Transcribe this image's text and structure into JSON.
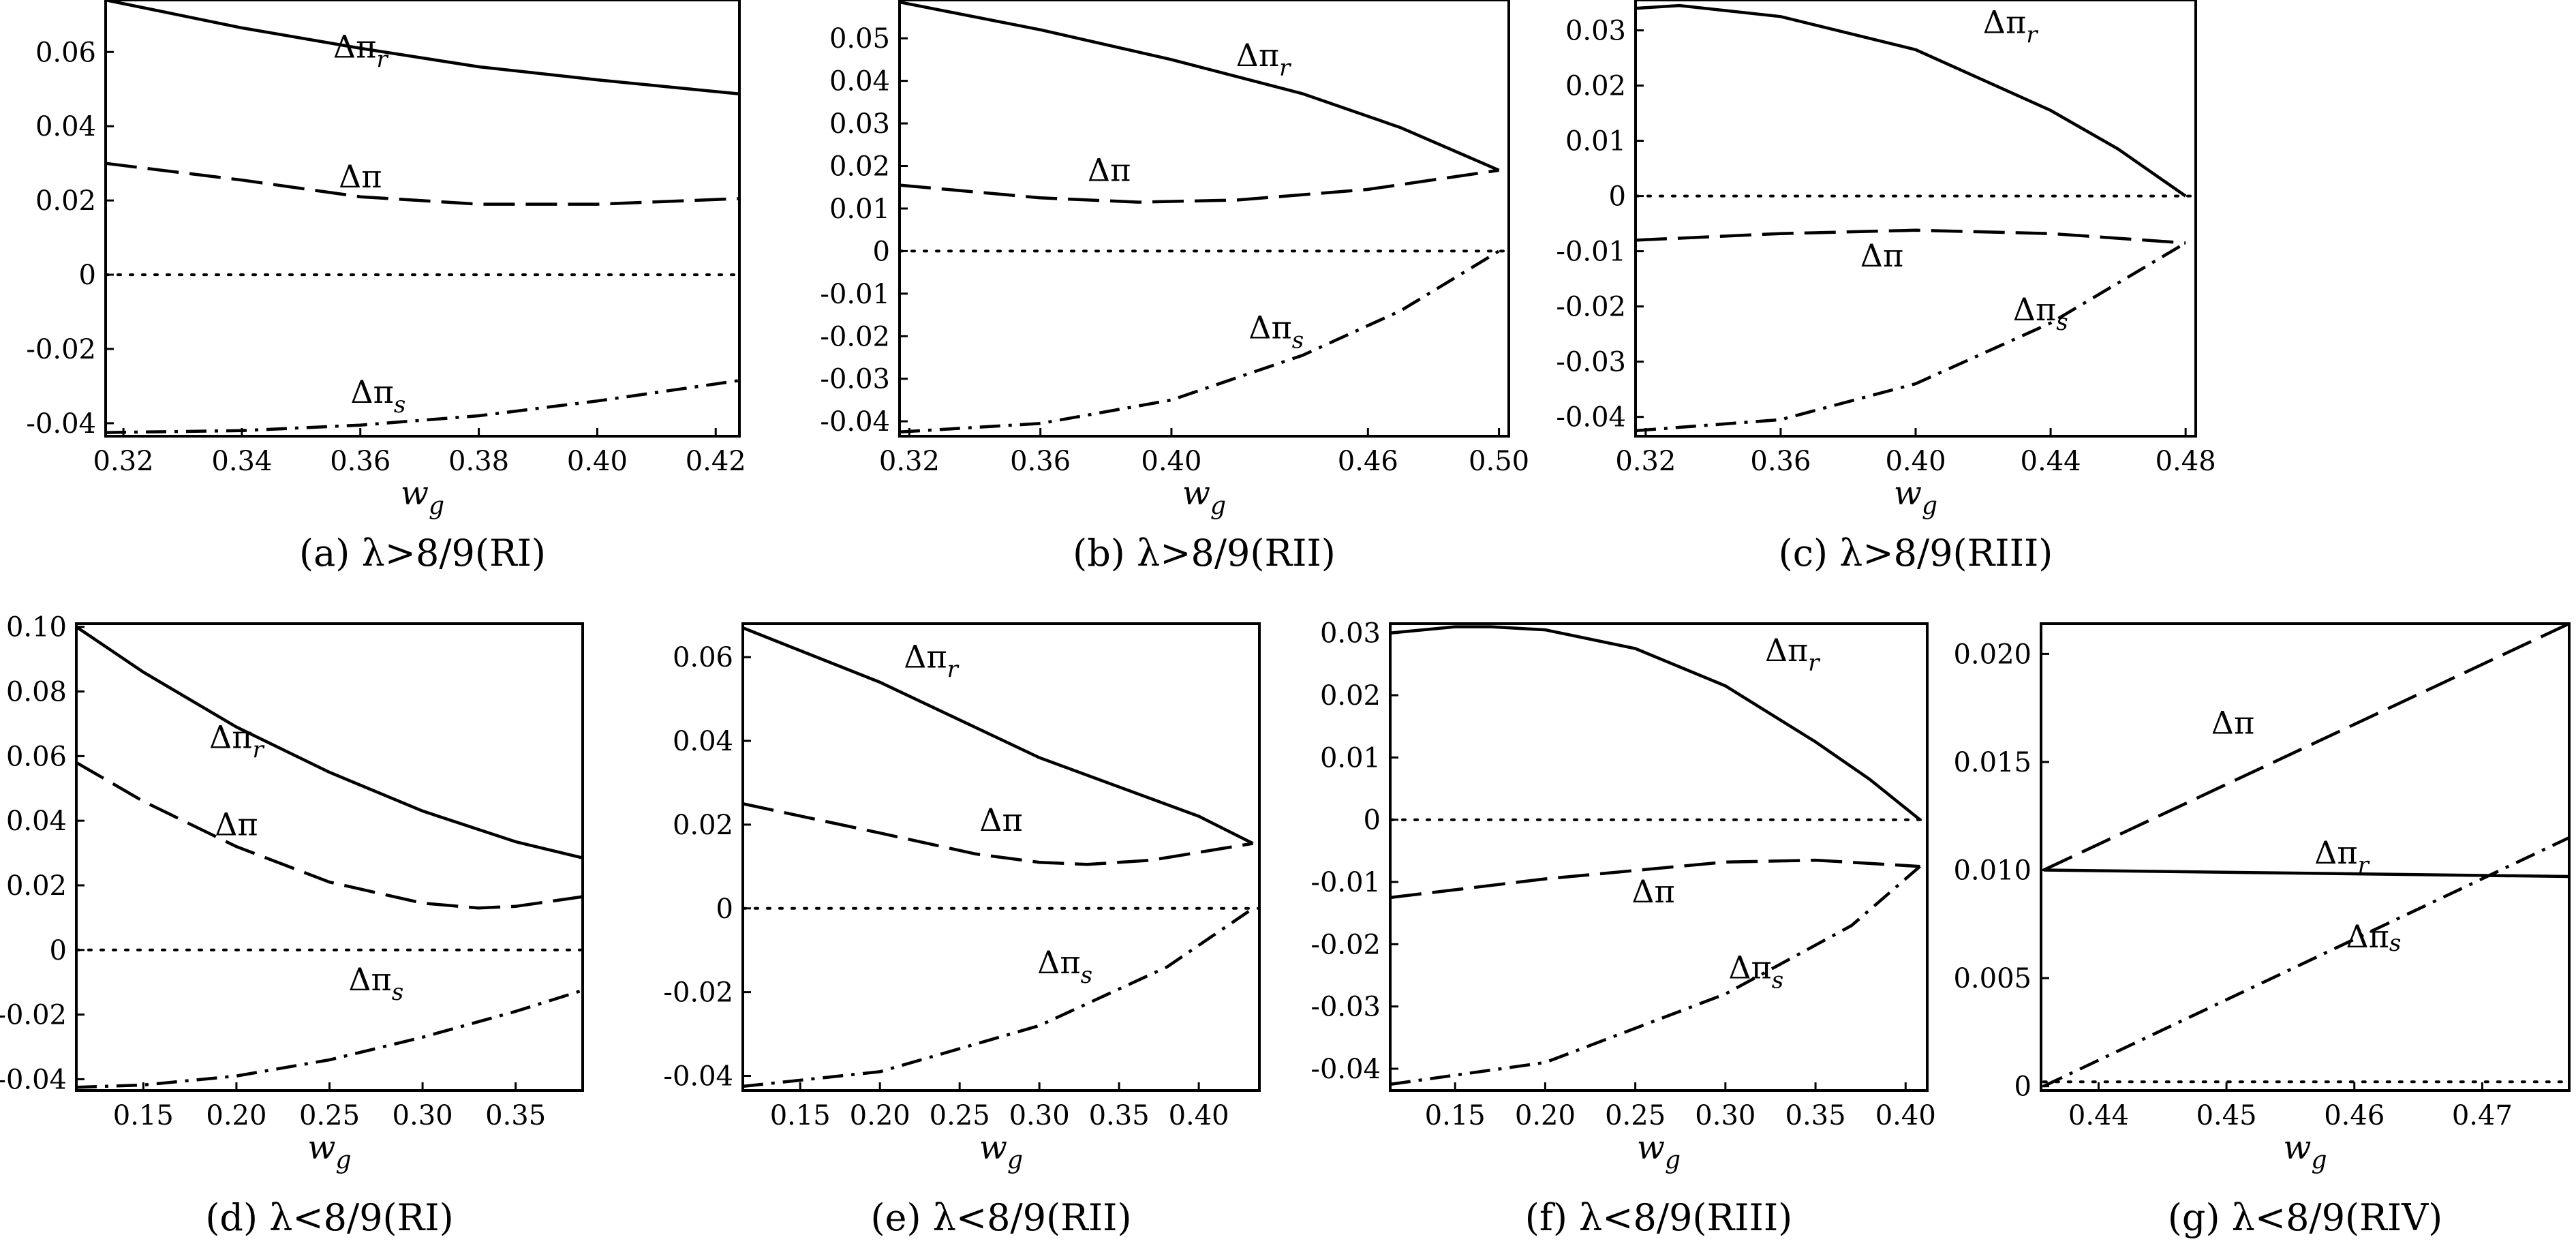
{
  "chart_data": [
    {
      "type": "line",
      "caption": "(a) λ>8/9(RI)",
      "xlabel": "w",
      "xlabel_sub": "g",
      "xlim": [
        0.317,
        0.424
      ],
      "ylim": [
        -0.0435,
        0.074
      ],
      "xticks": [
        0.32,
        0.34,
        0.36,
        0.38,
        0.4,
        0.42
      ],
      "xtick_labels": [
        "0.32",
        "0.34",
        "0.36",
        "0.38",
        "0.40",
        "0.42"
      ],
      "yticks": [
        -0.04,
        -0.02,
        0,
        0.02,
        0.04,
        0.06
      ],
      "ytick_labels": [
        "-0.04",
        "-0.02",
        "0",
        "0.02",
        "0.04",
        "0.06"
      ],
      "series": [
        {
          "label": "Δπ",
          "sub": "r",
          "style": "solid",
          "x": [
            0.317,
            0.34,
            0.36,
            0.38,
            0.4,
            0.424
          ],
          "y": [
            0.074,
            0.0665,
            0.061,
            0.056,
            0.0525,
            0.0487
          ],
          "label_at": [
            0.36,
            0.0585
          ],
          "label_valign": "bottom"
        },
        {
          "label": "Δπ",
          "sub": "",
          "style": "dash",
          "x": [
            0.317,
            0.34,
            0.36,
            0.38,
            0.4,
            0.424
          ],
          "y": [
            0.03,
            0.0255,
            0.021,
            0.019,
            0.019,
            0.0205
          ],
          "label_at": [
            0.36,
            0.0235
          ],
          "label_valign": "bottom"
        },
        {
          "label": "0",
          "sub": "",
          "style": "dot",
          "label_hidden": true,
          "x": [
            0.317,
            0.424
          ],
          "y": [
            0,
            0
          ]
        },
        {
          "label": "Δπ",
          "sub": "s",
          "style": "dashdot",
          "x": [
            0.317,
            0.34,
            0.36,
            0.38,
            0.4,
            0.424
          ],
          "y": [
            -0.0425,
            -0.042,
            -0.0405,
            -0.038,
            -0.034,
            -0.0285
          ],
          "label_at": [
            0.363,
            -0.0345
          ],
          "label_valign": "bottom"
        }
      ]
    },
    {
      "type": "line",
      "caption": "(b) λ>8/9(RII)",
      "xlabel": "w",
      "xlabel_sub": "g",
      "xlim": [
        0.317,
        0.503
      ],
      "ylim": [
        -0.0435,
        0.059
      ],
      "xticks": [
        0.32,
        0.36,
        0.4,
        0.46,
        0.5
      ],
      "xtick_labels": [
        "0.32",
        "0.36",
        "0.40",
        "0.46",
        "0.50"
      ],
      "yticks": [
        -0.04,
        -0.03,
        -0.02,
        -0.01,
        0,
        0.01,
        0.02,
        0.03,
        0.04,
        0.05
      ],
      "ytick_labels": [
        "-0.04",
        "-0.03",
        "-0.02",
        "-0.01",
        "0",
        "0.01",
        "0.02",
        "0.03",
        "0.04",
        "0.05"
      ],
      "series": [
        {
          "label": "Δπ",
          "sub": "r",
          "style": "solid",
          "x": [
            0.317,
            0.36,
            0.4,
            0.44,
            0.47,
            0.5
          ],
          "y": [
            0.0585,
            0.052,
            0.045,
            0.037,
            0.029,
            0.019
          ],
          "label_at": [
            0.428,
            0.0435
          ],
          "label_valign": "bottom"
        },
        {
          "label": "Δπ",
          "sub": "",
          "style": "dash",
          "x": [
            0.317,
            0.36,
            0.39,
            0.42,
            0.46,
            0.5
          ],
          "y": [
            0.0155,
            0.0125,
            0.0115,
            0.012,
            0.0145,
            0.019
          ],
          "label_at": [
            0.381,
            0.0165
          ],
          "label_valign": "bottom"
        },
        {
          "label": "0",
          "sub": "",
          "style": "dot",
          "label_hidden": true,
          "x": [
            0.317,
            0.503
          ],
          "y": [
            0,
            0
          ]
        },
        {
          "label": "Δπ",
          "sub": "s",
          "style": "dashdot",
          "x": [
            0.317,
            0.36,
            0.4,
            0.44,
            0.47,
            0.5
          ],
          "y": [
            -0.0425,
            -0.0405,
            -0.035,
            -0.0245,
            -0.014,
            0.0
          ],
          "label_at": [
            0.432,
            -0.0205
          ],
          "label_valign": "bottom"
        }
      ]
    },
    {
      "type": "line",
      "caption": "(c) λ>8/9(RIII)",
      "xlabel": "w",
      "xlabel_sub": "g",
      "xlim": [
        0.317,
        0.483
      ],
      "ylim": [
        -0.0435,
        0.0355
      ],
      "xticks": [
        0.32,
        0.36,
        0.4,
        0.44,
        0.48
      ],
      "xtick_labels": [
        "0.32",
        "0.36",
        "0.40",
        "0.44",
        "0.48"
      ],
      "yticks": [
        -0.04,
        -0.03,
        -0.02,
        -0.01,
        0,
        0.01,
        0.02,
        0.03
      ],
      "ytick_labels": [
        "-0.04",
        "-0.03",
        "-0.02",
        "-0.01",
        "0",
        "0.01",
        "0.02",
        "0.03"
      ],
      "series": [
        {
          "label": "Δπ",
          "sub": "r",
          "style": "solid",
          "x": [
            0.317,
            0.33,
            0.36,
            0.4,
            0.44,
            0.46,
            0.48
          ],
          "y": [
            0.034,
            0.0345,
            0.0325,
            0.0265,
            0.0155,
            0.0085,
            0.0
          ],
          "label_at": [
            0.428,
            0.0295
          ],
          "label_valign": "bottom"
        },
        {
          "label": "Δπ",
          "sub": "",
          "style": "dash",
          "x": [
            0.317,
            0.36,
            0.4,
            0.44,
            0.48
          ],
          "y": [
            -0.008,
            -0.0068,
            -0.0062,
            -0.0068,
            -0.0085
          ],
          "label_at": [
            0.39,
            -0.0085
          ],
          "label_valign": "top"
        },
        {
          "label": "0",
          "sub": "",
          "style": "dot",
          "label_hidden": true,
          "x": [
            0.317,
            0.483
          ],
          "y": [
            0,
            0
          ]
        },
        {
          "label": "Δπ",
          "sub": "s",
          "style": "dashdot",
          "x": [
            0.317,
            0.36,
            0.4,
            0.44,
            0.48
          ],
          "y": [
            -0.0425,
            -0.0405,
            -0.034,
            -0.023,
            -0.0085
          ],
          "label_at": [
            0.437,
            -0.0225
          ],
          "label_valign": "bottom"
        }
      ]
    },
    {
      "type": "line",
      "caption": "(d) λ<8/9(RI)",
      "xlabel": "w",
      "xlabel_sub": "g",
      "xlim": [
        0.114,
        0.386
      ],
      "ylim": [
        -0.0435,
        0.101
      ],
      "xticks": [
        0.15,
        0.2,
        0.25,
        0.3,
        0.35
      ],
      "xtick_labels": [
        "0.15",
        "0.20",
        "0.25",
        "0.30",
        "0.35"
      ],
      "yticks": [
        -0.04,
        -0.02,
        0,
        0.02,
        0.04,
        0.06,
        0.08,
        0.1
      ],
      "ytick_labels": [
        "-0.04",
        "-0.02",
        "0",
        "0.02",
        "0.04",
        "0.06",
        "0.08",
        "0.10"
      ],
      "series": [
        {
          "label": "Δπ",
          "sub": "r",
          "style": "solid",
          "x": [
            0.114,
            0.15,
            0.2,
            0.25,
            0.3,
            0.35,
            0.386
          ],
          "y": [
            0.1,
            0.086,
            0.069,
            0.055,
            0.043,
            0.0335,
            0.0285
          ],
          "label_at": [
            0.2,
            0.0625
          ],
          "label_valign": "bottom"
        },
        {
          "label": "Δπ",
          "sub": "",
          "style": "dash",
          "x": [
            0.114,
            0.15,
            0.2,
            0.25,
            0.3,
            0.33,
            0.35,
            0.386
          ],
          "y": [
            0.058,
            0.046,
            0.032,
            0.021,
            0.0145,
            0.013,
            0.0135,
            0.0165
          ],
          "label_at": [
            0.2,
            0.0355
          ],
          "label_valign": "bottom"
        },
        {
          "label": "0",
          "sub": "",
          "style": "dot",
          "label_hidden": true,
          "x": [
            0.114,
            0.386
          ],
          "y": [
            0,
            0
          ]
        },
        {
          "label": "Δπ",
          "sub": "s",
          "style": "dashdot",
          "x": [
            0.114,
            0.15,
            0.2,
            0.25,
            0.3,
            0.35,
            0.386
          ],
          "y": [
            -0.0425,
            -0.0418,
            -0.039,
            -0.034,
            -0.027,
            -0.019,
            -0.0125
          ],
          "label_at": [
            0.275,
            -0.0125
          ],
          "label_valign": "bottom"
        }
      ]
    },
    {
      "type": "line",
      "caption": "(e) λ<8/9(RII)",
      "xlabel": "w",
      "xlabel_sub": "g",
      "xlim": [
        0.114,
        0.438
      ],
      "ylim": [
        -0.0435,
        0.068
      ],
      "xticks": [
        0.15,
        0.2,
        0.25,
        0.3,
        0.35,
        0.4
      ],
      "xtick_labels": [
        "0.15",
        "0.20",
        "0.25",
        "0.30",
        "0.35",
        "0.40"
      ],
      "yticks": [
        -0.04,
        -0.02,
        0,
        0.02,
        0.04,
        0.06
      ],
      "ytick_labels": [
        "-0.04",
        "-0.02",
        "0",
        "0.02",
        "0.04",
        "0.06"
      ],
      "series": [
        {
          "label": "Δπ",
          "sub": "r",
          "style": "solid",
          "x": [
            0.114,
            0.2,
            0.3,
            0.4,
            0.434
          ],
          "y": [
            0.067,
            0.054,
            0.036,
            0.022,
            0.0155
          ],
          "label_at": [
            0.232,
            0.0575
          ],
          "label_valign": "bottom"
        },
        {
          "label": "Δπ",
          "sub": "",
          "style": "dash",
          "x": [
            0.114,
            0.2,
            0.26,
            0.3,
            0.33,
            0.37,
            0.434
          ],
          "y": [
            0.025,
            0.018,
            0.013,
            0.011,
            0.0105,
            0.0115,
            0.0155
          ],
          "label_at": [
            0.276,
            0.0185
          ],
          "label_valign": "bottom"
        },
        {
          "label": "0",
          "sub": "",
          "style": "dot",
          "label_hidden": true,
          "x": [
            0.114,
            0.438
          ],
          "y": [
            0,
            0
          ]
        },
        {
          "label": "Δπ",
          "sub": "s",
          "style": "dashdot",
          "x": [
            0.114,
            0.2,
            0.3,
            0.38,
            0.434
          ],
          "y": [
            -0.0425,
            -0.039,
            -0.028,
            -0.014,
            0.0
          ],
          "label_at": [
            0.316,
            -0.0155
          ],
          "label_valign": "bottom"
        }
      ]
    },
    {
      "type": "line",
      "caption": "(f) λ<8/9(RIII)",
      "xlabel": "w",
      "xlabel_sub": "g",
      "xlim": [
        0.114,
        0.412
      ],
      "ylim": [
        -0.0435,
        0.0315
      ],
      "xticks": [
        0.15,
        0.2,
        0.25,
        0.3,
        0.35,
        0.4
      ],
      "xtick_labels": [
        "0.15",
        "0.20",
        "0.25",
        "0.30",
        "0.35",
        "0.40"
      ],
      "yticks": [
        -0.04,
        -0.03,
        -0.02,
        -0.01,
        0,
        0.01,
        0.02,
        0.03
      ],
      "ytick_labels": [
        "-0.04",
        "-0.03",
        "-0.02",
        "-0.01",
        "0",
        "0.01",
        "0.02",
        "0.03"
      ],
      "series": [
        {
          "label": "Δπ",
          "sub": "r",
          "style": "solid",
          "x": [
            0.114,
            0.15,
            0.17,
            0.2,
            0.25,
            0.3,
            0.35,
            0.38,
            0.408
          ],
          "y": [
            0.03,
            0.031,
            0.031,
            0.0305,
            0.0275,
            0.0215,
            0.0125,
            0.0065,
            0.0
          ],
          "label_at": [
            0.337,
            0.0255
          ],
          "label_valign": "bottom"
        },
        {
          "label": "Δπ",
          "sub": "",
          "style": "dash",
          "x": [
            0.114,
            0.2,
            0.3,
            0.35,
            0.408
          ],
          "y": [
            -0.0125,
            -0.0095,
            -0.0068,
            -0.0065,
            -0.0075
          ],
          "label_at": [
            0.26,
            -0.0095
          ],
          "label_valign": "top"
        },
        {
          "label": "0",
          "sub": "",
          "style": "dot",
          "label_hidden": true,
          "x": [
            0.114,
            0.412
          ],
          "y": [
            0,
            0
          ]
        },
        {
          "label": "Δπ",
          "sub": "s",
          "style": "dashdot",
          "x": [
            0.114,
            0.2,
            0.3,
            0.37,
            0.408
          ],
          "y": [
            -0.0425,
            -0.039,
            -0.028,
            -0.017,
            -0.0075
          ],
          "label_at": [
            0.317,
            -0.0255
          ],
          "label_valign": "bottom"
        }
      ]
    },
    {
      "type": "line",
      "caption": "(g) λ<8/9(RIV)",
      "xlabel": "w",
      "xlabel_sub": "g",
      "xlim": [
        0.4355,
        0.4768
      ],
      "ylim": [
        -0.0002,
        0.0214
      ],
      "xticks": [
        0.44,
        0.45,
        0.46,
        0.47
      ],
      "xtick_labels": [
        "0.44",
        "0.45",
        "0.46",
        "0.47"
      ],
      "yticks": [
        0,
        0.005,
        0.01,
        0.015,
        0.02
      ],
      "ytick_labels": [
        "0",
        "0.005",
        "0.010",
        "0.015",
        "0.020"
      ],
      "series": [
        {
          "label": "Δπ",
          "sub": "",
          "style": "dash",
          "x": [
            0.4357,
            0.4768
          ],
          "y": [
            0.01,
            0.0214
          ],
          "label_at": [
            0.4505,
            0.0163
          ],
          "label_valign": "bottom"
        },
        {
          "label": "Δπ",
          "sub": "r",
          "style": "solid",
          "x": [
            0.4357,
            0.4768
          ],
          "y": [
            0.01,
            0.0097
          ],
          "label_at": [
            0.459,
            0.0103
          ],
          "label_valign": "bottom"
        },
        {
          "label": "0",
          "sub": "",
          "style": "dot",
          "label_hidden": true,
          "x": [
            0.4357,
            0.4768
          ],
          "y": [
            0.0002,
            0.0002
          ]
        },
        {
          "label": "Δπ",
          "sub": "s",
          "style": "dashdot",
          "x": [
            0.4357,
            0.4768
          ],
          "y": [
            0.0,
            0.0115
          ],
          "label_at": [
            0.4615,
            0.0075
          ],
          "label_valign": "top"
        }
      ]
    }
  ]
}
